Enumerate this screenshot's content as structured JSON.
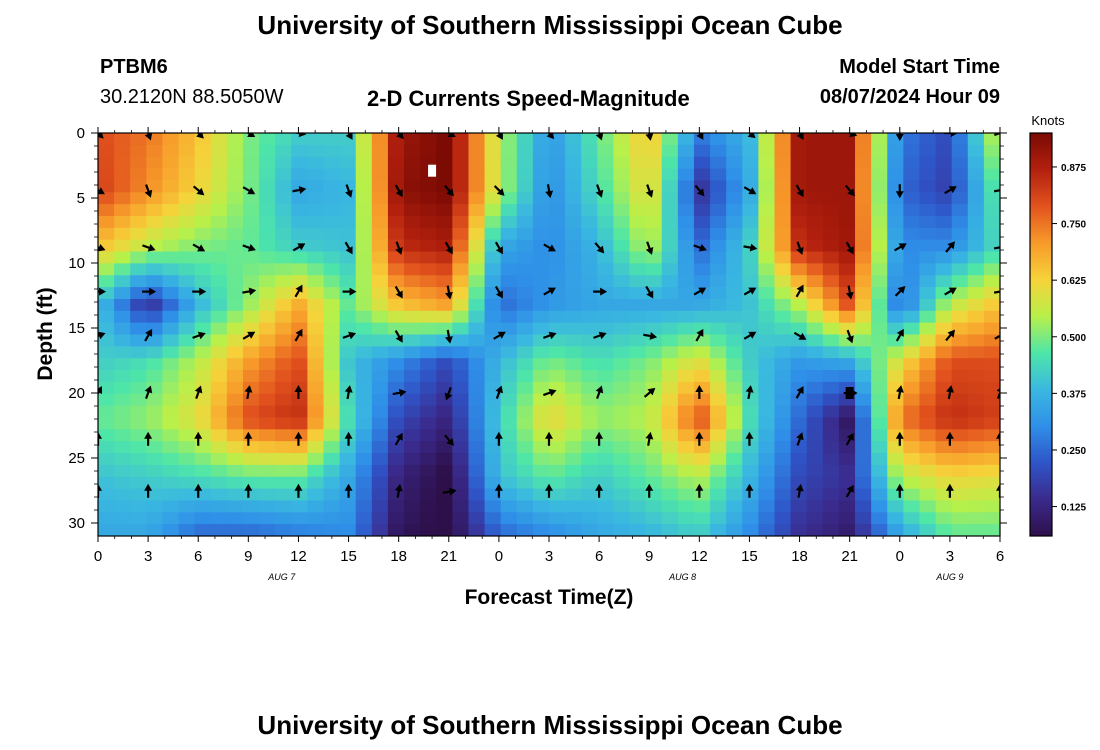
{
  "header": {
    "title": "University of Southern Mississippi Ocean Cube",
    "station": "PTBM6",
    "coords": "30.2120N  88.5050W",
    "subtitle": "2-D Currents Speed-Magnitude",
    "model_label": "Model Start Time",
    "model_time": "08/07/2024 Hour 09"
  },
  "footer": {
    "title": "University of Southern Mississippi Ocean Cube"
  },
  "colors": {
    "scale": [
      "#2d0f4a",
      "#3a2a8c",
      "#2f55c8",
      "#2f8fe8",
      "#3ab8e0",
      "#4ee6a8",
      "#b8f04a",
      "#f6d23a",
      "#f79a2a",
      "#e2531e",
      "#b3200e",
      "#7a0a04"
    ]
  },
  "chart_data": {
    "type": "heatmap",
    "title": "2-D Currents Speed-Magnitude",
    "xlabel": "Forecast Time(Z)",
    "ylabel": "Depth (ft)",
    "x_ticks": [
      "0",
      "3",
      "6",
      "9",
      "12",
      "15",
      "18",
      "21",
      "0",
      "3",
      "6",
      "9",
      "12",
      "15",
      "18",
      "21",
      "0",
      "3",
      "6"
    ],
    "x_range": [
      0,
      54
    ],
    "y_ticks": [
      "0",
      "5",
      "10",
      "15",
      "20",
      "25",
      "30"
    ],
    "y_range": [
      0,
      31
    ],
    "date_labels": [
      {
        "text": "AUG 7",
        "x": 11
      },
      {
        "text": "AUG 8",
        "x": 35
      },
      {
        "text": "AUG 9",
        "x": 51
      }
    ],
    "colorbar": {
      "label": "Knots",
      "min": 0.06,
      "max": 0.95,
      "ticks": [
        "0.125",
        "0.250",
        "0.375",
        "0.500",
        "0.625",
        "0.750",
        "0.875"
      ]
    },
    "depths": [
      0,
      4.4,
      8.8,
      13.2,
      17.6,
      22,
      26.4,
      30.8
    ],
    "times": [
      0,
      3,
      6,
      9,
      12,
      15,
      18,
      21,
      24,
      27,
      30,
      33,
      36,
      39,
      42,
      45,
      48,
      51,
      54
    ],
    "speed": [
      [
        0.8,
        0.75,
        0.65,
        0.5,
        0.42,
        0.42,
        0.9,
        0.95,
        0.55,
        0.32,
        0.48,
        0.65,
        0.28,
        0.38,
        0.9,
        0.9,
        0.28,
        0.2,
        0.6
      ],
      [
        0.82,
        0.72,
        0.62,
        0.5,
        0.35,
        0.38,
        0.92,
        0.95,
        0.55,
        0.3,
        0.45,
        0.62,
        0.15,
        0.35,
        0.9,
        0.9,
        0.25,
        0.18,
        0.5
      ],
      [
        0.65,
        0.55,
        0.5,
        0.48,
        0.42,
        0.4,
        0.85,
        0.88,
        0.35,
        0.3,
        0.38,
        0.55,
        0.25,
        0.42,
        0.85,
        0.9,
        0.3,
        0.3,
        0.45
      ],
      [
        0.4,
        0.15,
        0.38,
        0.52,
        0.68,
        0.48,
        0.65,
        0.7,
        0.25,
        0.32,
        0.35,
        0.35,
        0.35,
        0.4,
        0.55,
        0.8,
        0.25,
        0.55,
        0.65
      ],
      [
        0.42,
        0.45,
        0.55,
        0.7,
        0.8,
        0.4,
        0.3,
        0.2,
        0.38,
        0.5,
        0.45,
        0.5,
        0.6,
        0.42,
        0.32,
        0.35,
        0.6,
        0.8,
        0.8
      ],
      [
        0.48,
        0.52,
        0.6,
        0.8,
        0.85,
        0.45,
        0.2,
        0.12,
        0.42,
        0.62,
        0.52,
        0.55,
        0.8,
        0.45,
        0.25,
        0.08,
        0.75,
        0.85,
        0.82
      ],
      [
        0.4,
        0.42,
        0.45,
        0.48,
        0.48,
        0.35,
        0.12,
        0.05,
        0.4,
        0.48,
        0.42,
        0.48,
        0.55,
        0.38,
        0.2,
        0.15,
        0.55,
        0.62,
        0.6
      ],
      [
        0.35,
        0.35,
        0.25,
        0.25,
        0.28,
        0.3,
        0.08,
        0.05,
        0.25,
        0.3,
        0.35,
        0.38,
        0.42,
        0.3,
        0.15,
        0.1,
        0.35,
        0.48,
        0.48
      ]
    ],
    "arrow_depths": [
      0,
      4.4,
      8.8,
      12.2,
      15.6,
      20.0,
      23.6,
      27.6
    ],
    "arrow_times": [
      0,
      3,
      6,
      9,
      12,
      15,
      18,
      21,
      24,
      27,
      30,
      33,
      36,
      39,
      42,
      45,
      48,
      51,
      54
    ],
    "arrow_dirs": [
      [
        135,
        160,
        135,
        120,
        100,
        150,
        140,
        120,
        150,
        140,
        160,
        170,
        150,
        130,
        150,
        110,
        180,
        90,
        70
      ],
      [
        120,
        160,
        130,
        120,
        80,
        160,
        150,
        140,
        135,
        170,
        160,
        160,
        140,
        120,
        150,
        140,
        180,
        60,
        80
      ],
      [
        110,
        110,
        120,
        110,
        60,
        150,
        160,
        150,
        150,
        120,
        140,
        160,
        110,
        100,
        160,
        150,
        60,
        40,
        80
      ],
      [
        90,
        90,
        90,
        80,
        30,
        90,
        150,
        170,
        150,
        60,
        90,
        150,
        60,
        60,
        30,
        170,
        45,
        60,
        80
      ],
      [
        70,
        30,
        70,
        60,
        30,
        70,
        150,
        170,
        60,
        70,
        70,
        100,
        30,
        60,
        120,
        160,
        30,
        40,
        60
      ],
      [
        30,
        20,
        20,
        10,
        0,
        10,
        80,
        200,
        20,
        70,
        20,
        50,
        0,
        10,
        30,
        90,
        10,
        10,
        20
      ],
      [
        0,
        0,
        0,
        0,
        0,
        0,
        30,
        140,
        0,
        0,
        0,
        10,
        0,
        0,
        20,
        30,
        0,
        0,
        0
      ],
      [
        0,
        0,
        0,
        0,
        0,
        0,
        10,
        80,
        0,
        0,
        0,
        0,
        0,
        0,
        10,
        30,
        0,
        0,
        0
      ]
    ],
    "markers": [
      {
        "time": 20,
        "depth": 2.9,
        "color": "white"
      },
      {
        "time": 45,
        "depth": 20.0,
        "color": "black"
      }
    ]
  }
}
